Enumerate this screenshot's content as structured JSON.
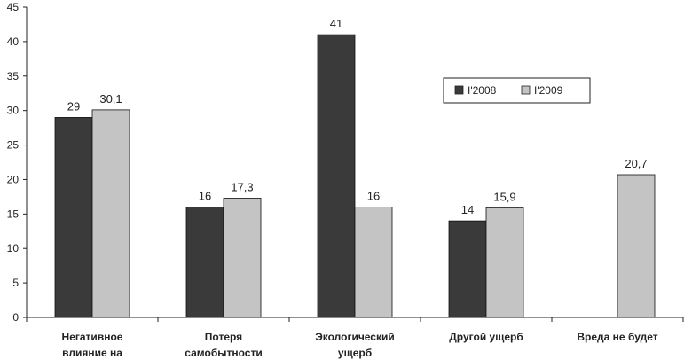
{
  "chart_data": {
    "type": "bar",
    "categories": [
      [
        "Негативное",
        "влияние на"
      ],
      [
        "Потеря",
        "самобытности"
      ],
      [
        "Экологический",
        "ущерб"
      ],
      [
        "Другой ущерб"
      ],
      [
        "Вреда не будет"
      ]
    ],
    "series": [
      {
        "name": "I'2008",
        "color": "#3a3a3a",
        "values": [
          29,
          16,
          41,
          14,
          null
        ],
        "labels": [
          "29",
          "16",
          "41",
          "14",
          ""
        ]
      },
      {
        "name": "I'2009",
        "color": "#c4c4c4",
        "values": [
          30.1,
          17.3,
          16,
          15.9,
          20.7
        ],
        "labels": [
          "30,1",
          "17,3",
          "16",
          "15,9",
          "20,7"
        ]
      }
    ],
    "ylim": [
      0,
      45
    ],
    "yticks": [
      0,
      5,
      10,
      15,
      20,
      25,
      30,
      35,
      40,
      45
    ],
    "grid": false,
    "legend_position": "top-right"
  }
}
